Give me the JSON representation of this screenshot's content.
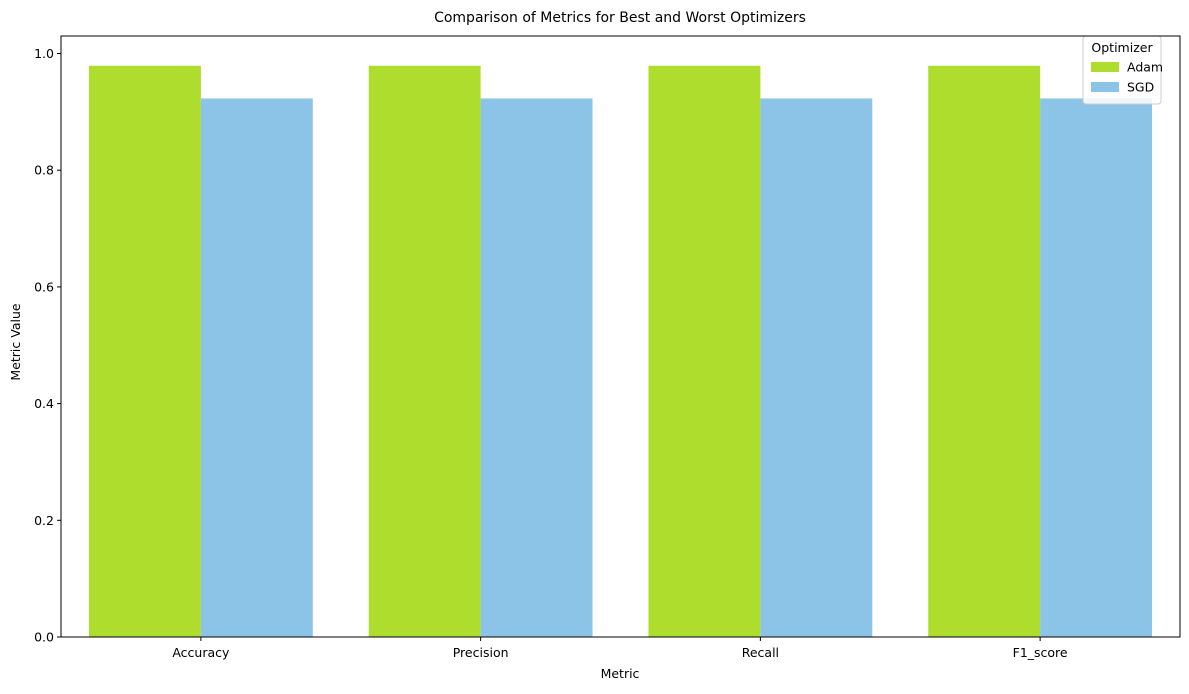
{
  "chart_data": {
    "type": "bar",
    "title": "Comparison of Metrics for Best and Worst Optimizers",
    "xlabel": "Metric",
    "ylabel": "Metric Value",
    "categories": [
      "Accuracy",
      "Precision",
      "Recall",
      "F1_score"
    ],
    "series": [
      {
        "name": "Adam",
        "values": [
          0.979,
          0.979,
          0.979,
          0.979
        ],
        "color": "#aedd2d"
      },
      {
        "name": "SGD",
        "values": [
          0.923,
          0.923,
          0.923,
          0.923
        ],
        "color": "#8cc4e8"
      }
    ],
    "ylim": [
      0,
      1.03
    ],
    "yticks": [
      0.0,
      0.2,
      0.4,
      0.6,
      0.8,
      1.0
    ],
    "ytick_labels": [
      "0.0",
      "0.2",
      "0.4",
      "0.6",
      "0.8",
      "1.0"
    ],
    "grid": false,
    "legend": {
      "title": "Optimizer",
      "placement": "top-right"
    }
  }
}
